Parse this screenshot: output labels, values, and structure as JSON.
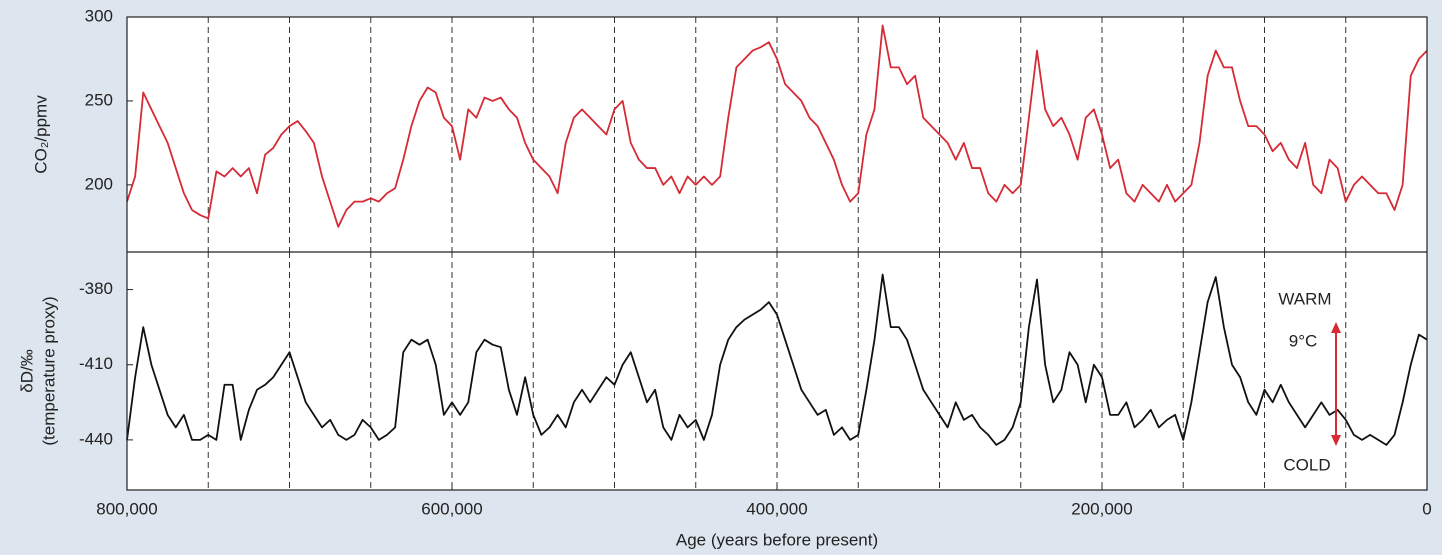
{
  "chart_data": [
    {
      "type": "line",
      "ylabel": "CO₂/ppmv",
      "xlim": [
        800000,
        0
      ],
      "ylim": [
        160,
        300
      ],
      "yticks": [
        200,
        250,
        300
      ],
      "xgrid": [
        750000,
        700000,
        650000,
        600000,
        550000,
        500000,
        450000,
        400000,
        350000,
        300000,
        250000,
        200000,
        150000,
        100000,
        50000
      ],
      "x": [
        800000,
        795000,
        790000,
        785000,
        780000,
        775000,
        770000,
        765000,
        760000,
        755000,
        750000,
        745000,
        740000,
        735000,
        730000,
        725000,
        720000,
        715000,
        710000,
        705000,
        700000,
        695000,
        690000,
        685000,
        680000,
        675000,
        670000,
        665000,
        660000,
        655000,
        650000,
        645000,
        640000,
        635000,
        630000,
        625000,
        620000,
        615000,
        610000,
        605000,
        600000,
        595000,
        590000,
        585000,
        580000,
        575000,
        570000,
        565000,
        560000,
        555000,
        550000,
        545000,
        540000,
        535000,
        530000,
        525000,
        520000,
        515000,
        510000,
        505000,
        500000,
        495000,
        490000,
        485000,
        480000,
        475000,
        470000,
        465000,
        460000,
        455000,
        450000,
        445000,
        440000,
        435000,
        430000,
        425000,
        420000,
        415000,
        410000,
        405000,
        400000,
        395000,
        390000,
        385000,
        380000,
        375000,
        370000,
        365000,
        360000,
        355000,
        350000,
        345000,
        340000,
        335000,
        330000,
        325000,
        320000,
        315000,
        310000,
        305000,
        300000,
        295000,
        290000,
        285000,
        280000,
        275000,
        270000,
        265000,
        260000,
        255000,
        250000,
        245000,
        240000,
        235000,
        230000,
        225000,
        220000,
        215000,
        210000,
        205000,
        200000,
        195000,
        190000,
        185000,
        180000,
        175000,
        170000,
        165000,
        160000,
        155000,
        150000,
        145000,
        140000,
        135000,
        130000,
        125000,
        120000,
        115000,
        110000,
        105000,
        100000,
        95000,
        90000,
        85000,
        80000,
        75000,
        70000,
        65000,
        60000,
        55000,
        50000,
        45000,
        40000,
        35000,
        30000,
        25000,
        20000,
        15000,
        10000,
        5000,
        0
      ],
      "series": [
        {
          "color": "#d62a35",
          "values": [
            190,
            205,
            255,
            245,
            235,
            225,
            210,
            195,
            185,
            182,
            180,
            208,
            205,
            210,
            205,
            210,
            195,
            218,
            222,
            230,
            235,
            238,
            232,
            225,
            205,
            190,
            175,
            185,
            190,
            190,
            192,
            190,
            195,
            198,
            215,
            235,
            250,
            258,
            255,
            240,
            235,
            215,
            245,
            240,
            252,
            250,
            252,
            245,
            240,
            225,
            215,
            210,
            205,
            195,
            225,
            240,
            245,
            240,
            235,
            230,
            245,
            250,
            225,
            215,
            210,
            210,
            200,
            205,
            195,
            205,
            200,
            205,
            200,
            205,
            240,
            270,
            275,
            280,
            282,
            285,
            275,
            260,
            255,
            250,
            240,
            235,
            225,
            215,
            200,
            190,
            195,
            230,
            245,
            295,
            270,
            270,
            260,
            265,
            240,
            235,
            230,
            225,
            215,
            225,
            210,
            210,
            195,
            190,
            200,
            195,
            200,
            240,
            280,
            245,
            235,
            240,
            230,
            215,
            240,
            245,
            230,
            210,
            215,
            195,
            190,
            200,
            195,
            190,
            200,
            190,
            195,
            200,
            225,
            265,
            280,
            270,
            270,
            250,
            235,
            235,
            230,
            220,
            225,
            215,
            210,
            225,
            200,
            195,
            215,
            210,
            190,
            200,
            205,
            200,
            195,
            195,
            185,
            200,
            265,
            275,
            280
          ]
        }
      ]
    },
    {
      "type": "line",
      "ylabel": [
        "δD/‰",
        "(temperature proxy)"
      ],
      "xlabel": "Age (years before present)",
      "xlim": [
        800000,
        0
      ],
      "ylim": [
        -460,
        -365
      ],
      "yticks": [
        -440,
        -410,
        -380
      ],
      "xticks": [
        {
          "value": 800000,
          "label": "800,000"
        },
        {
          "value": 600000,
          "label": "600,000"
        },
        {
          "value": 400000,
          "label": "400,000"
        },
        {
          "value": 200000,
          "label": "200,000"
        },
        0
      ],
      "xgrid": [
        750000,
        700000,
        650000,
        600000,
        550000,
        500000,
        450000,
        400000,
        350000,
        300000,
        250000,
        200000,
        150000,
        100000,
        50000
      ],
      "annotations": [
        "WARM",
        "9°C",
        "COLD"
      ],
      "x": [
        800000,
        795000,
        790000,
        785000,
        780000,
        775000,
        770000,
        765000,
        760000,
        755000,
        750000,
        745000,
        740000,
        735000,
        730000,
        725000,
        720000,
        715000,
        710000,
        705000,
        700000,
        695000,
        690000,
        685000,
        680000,
        675000,
        670000,
        665000,
        660000,
        655000,
        650000,
        645000,
        640000,
        635000,
        630000,
        625000,
        620000,
        615000,
        610000,
        605000,
        600000,
        595000,
        590000,
        585000,
        580000,
        575000,
        570000,
        565000,
        560000,
        555000,
        550000,
        545000,
        540000,
        535000,
        530000,
        525000,
        520000,
        515000,
        510000,
        505000,
        500000,
        495000,
        490000,
        485000,
        480000,
        475000,
        470000,
        465000,
        460000,
        455000,
        450000,
        445000,
        440000,
        435000,
        430000,
        425000,
        420000,
        415000,
        410000,
        405000,
        400000,
        395000,
        390000,
        385000,
        380000,
        375000,
        370000,
        365000,
        360000,
        355000,
        350000,
        345000,
        340000,
        335000,
        330000,
        325000,
        320000,
        315000,
        310000,
        305000,
        300000,
        295000,
        290000,
        285000,
        280000,
        275000,
        270000,
        265000,
        260000,
        255000,
        250000,
        245000,
        240000,
        235000,
        230000,
        225000,
        220000,
        215000,
        210000,
        205000,
        200000,
        195000,
        190000,
        185000,
        180000,
        175000,
        170000,
        165000,
        160000,
        155000,
        150000,
        145000,
        140000,
        135000,
        130000,
        125000,
        120000,
        115000,
        110000,
        105000,
        100000,
        95000,
        90000,
        85000,
        80000,
        75000,
        70000,
        65000,
        60000,
        55000,
        50000,
        45000,
        40000,
        35000,
        30000,
        25000,
        20000,
        15000,
        10000,
        5000,
        0
      ],
      "series": [
        {
          "color": "#111111",
          "values": [
            -440,
            -415,
            -395,
            -410,
            -420,
            -430,
            -435,
            -430,
            -440,
            -440,
            -438,
            -440,
            -418,
            -418,
            -440,
            -428,
            -420,
            -418,
            -415,
            -410,
            -405,
            -415,
            -425,
            -430,
            -435,
            -432,
            -438,
            -440,
            -438,
            -432,
            -435,
            -440,
            -438,
            -435,
            -405,
            -400,
            -402,
            -400,
            -410,
            -430,
            -425,
            -430,
            -425,
            -405,
            -400,
            -402,
            -403,
            -420,
            -430,
            -415,
            -430,
            -438,
            -435,
            -430,
            -435,
            -425,
            -420,
            -425,
            -420,
            -415,
            -418,
            -410,
            -405,
            -415,
            -425,
            -420,
            -435,
            -440,
            -430,
            -435,
            -432,
            -440,
            -430,
            -410,
            -400,
            -395,
            -392,
            -390,
            -388,
            -385,
            -390,
            -400,
            -410,
            -420,
            -425,
            -430,
            -428,
            -438,
            -435,
            -440,
            -438,
            -420,
            -400,
            -374,
            -395,
            -395,
            -400,
            -410,
            -420,
            -425,
            -430,
            -435,
            -425,
            -432,
            -430,
            -435,
            -438,
            -442,
            -440,
            -435,
            -425,
            -395,
            -376,
            -410,
            -425,
            -420,
            -405,
            -410,
            -425,
            -410,
            -415,
            -430,
            -430,
            -425,
            -435,
            -432,
            -428,
            -435,
            -432,
            -430,
            -440,
            -425,
            -405,
            -385,
            -375,
            -395,
            -410,
            -415,
            -425,
            -430,
            -420,
            -425,
            -418,
            -425,
            -430,
            -435,
            -430,
            -425,
            -430,
            -428,
            -432,
            -438,
            -440,
            -438,
            -440,
            -442,
            -438,
            -425,
            -410,
            -398,
            -400
          ]
        }
      ]
    }
  ]
}
